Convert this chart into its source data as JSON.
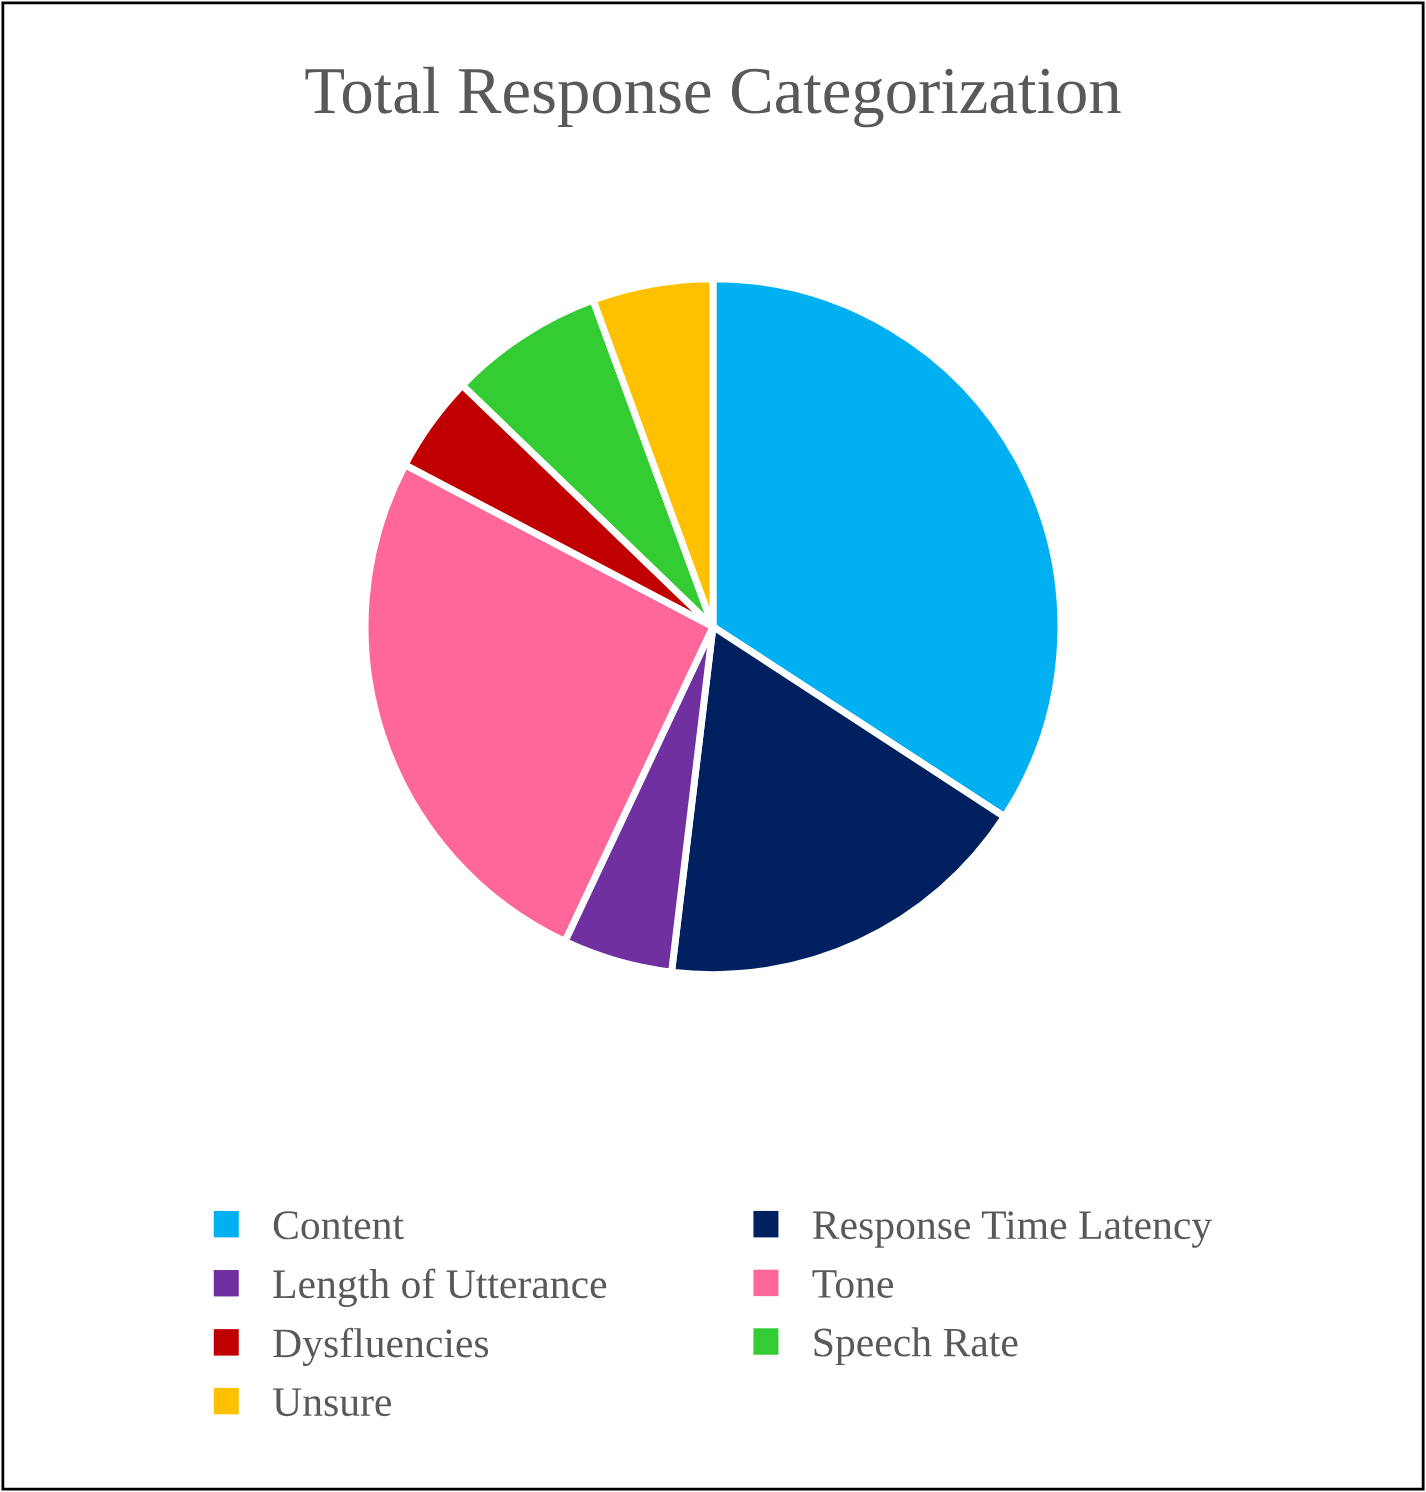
{
  "chart_data": {
    "type": "pie",
    "title": "Total Response Categorization",
    "categories": [
      "Content",
      "Response Time Latency",
      "Length of Utterance",
      "Tone",
      "Dysfluencies",
      "Speech Rate",
      "Unsure"
    ],
    "values": [
      34.2,
      17.7,
      5.1,
      25.7,
      4.5,
      7.2,
      5.6
    ],
    "colors": [
      "#00b0f0",
      "#002060",
      "#7030a0",
      "#ff6699",
      "#c00000",
      "#33cc33",
      "#ffc000"
    ],
    "legend": "bottom"
  }
}
